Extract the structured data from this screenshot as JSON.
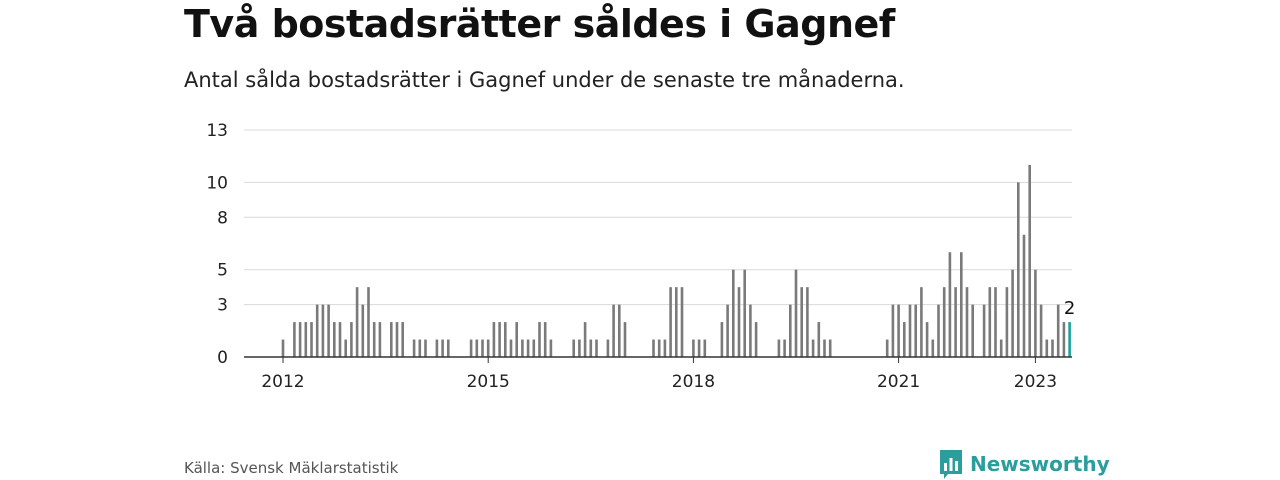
{
  "title": "Två bostadsrätter såldes i Gagnef",
  "subtitle": "Antal sålda bostadsrätter i Gagnef under de senaste tre månaderna.",
  "source": "Källa: Svensk Mäklarstatistik",
  "brand": "Newsworthy",
  "colors": {
    "bar": "#7a7a7a",
    "highlight": "#1aa39a",
    "grid": "#d9d9d9",
    "axis": "#333333",
    "brand": "#2a9d9d"
  },
  "chart_data": {
    "type": "bar",
    "x_start": "2012-01",
    "ylim": [
      0,
      13
    ],
    "yticks": [
      0,
      3,
      5,
      8,
      10,
      13
    ],
    "xticks": [
      "2012",
      "2015",
      "2018",
      "2021",
      "2023"
    ],
    "grid": true,
    "values": [
      1,
      0,
      2,
      2,
      2,
      2,
      3,
      3,
      3,
      2,
      2,
      1,
      2,
      4,
      3,
      4,
      2,
      2,
      0,
      2,
      2,
      2,
      0,
      1,
      1,
      1,
      0,
      1,
      1,
      1,
      0,
      0,
      0,
      1,
      1,
      1,
      1,
      2,
      2,
      2,
      1,
      2,
      1,
      1,
      1,
      2,
      2,
      1,
      0,
      0,
      0,
      1,
      1,
      2,
      1,
      1,
      0,
      1,
      3,
      3,
      2,
      0,
      0,
      0,
      0,
      1,
      1,
      1,
      4,
      4,
      4,
      0,
      1,
      1,
      1,
      0,
      0,
      2,
      3,
      5,
      4,
      5,
      3,
      2,
      0,
      0,
      0,
      1,
      1,
      3,
      5,
      4,
      4,
      1,
      2,
      1,
      1,
      0,
      0,
      0,
      0,
      0,
      0,
      0,
      0,
      0,
      1,
      3,
      3,
      2,
      3,
      3,
      4,
      2,
      1,
      3,
      4,
      6,
      4,
      6,
      4,
      3,
      0,
      3,
      4,
      4,
      1,
      4,
      5,
      10,
      7,
      11,
      5,
      3,
      1,
      1,
      3,
      2,
      2
    ],
    "highlight_last": true,
    "last_label": "2"
  }
}
